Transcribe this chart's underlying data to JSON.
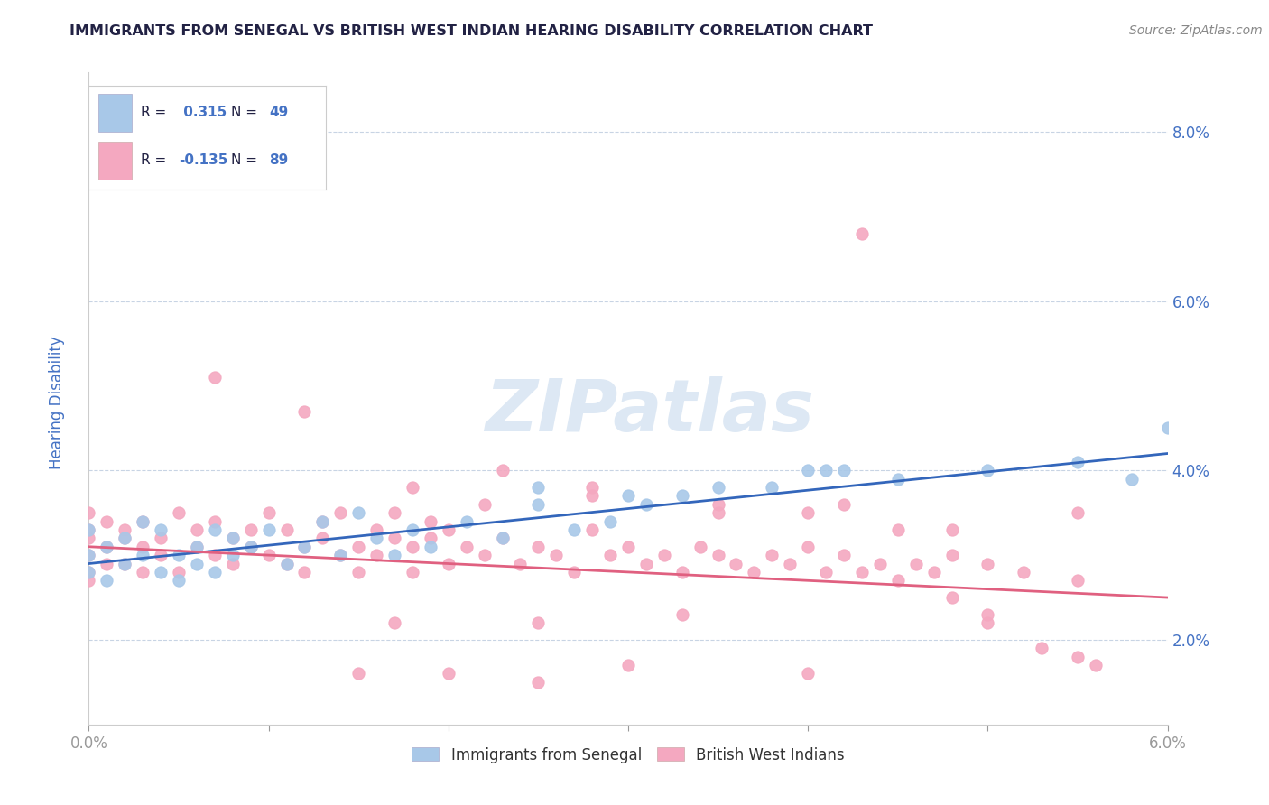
{
  "title": "IMMIGRANTS FROM SENEGAL VS BRITISH WEST INDIAN HEARING DISABILITY CORRELATION CHART",
  "source": "Source: ZipAtlas.com",
  "ylabel": "Hearing Disability",
  "xlim": [
    0.0,
    0.06
  ],
  "ylim": [
    0.01,
    0.087
  ],
  "xtick_positions": [
    0.0,
    0.01,
    0.02,
    0.03,
    0.04,
    0.05,
    0.06
  ],
  "xticklabels": [
    "0.0%",
    "",
    "",
    "",
    "",
    "",
    "6.0%"
  ],
  "ytick_positions": [
    0.02,
    0.04,
    0.06,
    0.08
  ],
  "yticklabels": [
    "2.0%",
    "4.0%",
    "6.0%",
    "8.0%"
  ],
  "R_blue": 0.315,
  "N_blue": 49,
  "R_pink": -0.135,
  "N_pink": 89,
  "blue_color": "#a8c8e8",
  "pink_color": "#f4a8c0",
  "blue_line_color": "#3366bb",
  "pink_line_color": "#e06080",
  "title_color": "#222244",
  "axis_label_color": "#4472c4",
  "ytick_color": "#4472c4",
  "xtick_color": "#999999",
  "legend_text_color": "#222244",
  "legend_val_color": "#4472c4",
  "watermark_color": "#dde8f4",
  "background_color": "#ffffff",
  "grid_color": "#c8d4e4",
  "blue_line_x": [
    0.0,
    0.06
  ],
  "blue_line_y": [
    0.029,
    0.042
  ],
  "pink_line_x": [
    0.0,
    0.06
  ],
  "pink_line_y": [
    0.031,
    0.025
  ],
  "figsize": [
    14.06,
    8.92
  ],
  "dpi": 100,
  "blue_scatter_x": [
    0.0,
    0.0,
    0.0,
    0.001,
    0.001,
    0.002,
    0.002,
    0.003,
    0.003,
    0.004,
    0.004,
    0.005,
    0.005,
    0.006,
    0.006,
    0.007,
    0.007,
    0.008,
    0.008,
    0.009,
    0.01,
    0.011,
    0.012,
    0.013,
    0.014,
    0.015,
    0.016,
    0.017,
    0.018,
    0.019,
    0.021,
    0.023,
    0.025,
    0.027,
    0.029,
    0.031,
    0.033,
    0.035,
    0.038,
    0.041,
    0.025,
    0.03,
    0.04,
    0.045,
    0.05,
    0.055,
    0.058,
    0.06,
    0.042
  ],
  "blue_scatter_y": [
    0.03,
    0.033,
    0.028,
    0.031,
    0.027,
    0.032,
    0.029,
    0.03,
    0.034,
    0.028,
    0.033,
    0.03,
    0.027,
    0.031,
    0.029,
    0.033,
    0.028,
    0.03,
    0.032,
    0.031,
    0.033,
    0.029,
    0.031,
    0.034,
    0.03,
    0.035,
    0.032,
    0.03,
    0.033,
    0.031,
    0.034,
    0.032,
    0.036,
    0.033,
    0.034,
    0.036,
    0.037,
    0.038,
    0.038,
    0.04,
    0.038,
    0.037,
    0.04,
    0.039,
    0.04,
    0.041,
    0.039,
    0.045,
    0.04
  ],
  "pink_scatter_x": [
    0.0,
    0.0,
    0.0,
    0.0,
    0.0,
    0.0,
    0.001,
    0.001,
    0.001,
    0.002,
    0.002,
    0.002,
    0.003,
    0.003,
    0.003,
    0.004,
    0.004,
    0.005,
    0.005,
    0.006,
    0.006,
    0.007,
    0.007,
    0.008,
    0.008,
    0.009,
    0.009,
    0.01,
    0.01,
    0.011,
    0.011,
    0.012,
    0.012,
    0.013,
    0.013,
    0.014,
    0.014,
    0.015,
    0.015,
    0.016,
    0.016,
    0.017,
    0.017,
    0.018,
    0.018,
    0.019,
    0.019,
    0.02,
    0.02,
    0.021,
    0.022,
    0.023,
    0.024,
    0.025,
    0.026,
    0.027,
    0.028,
    0.029,
    0.03,
    0.031,
    0.032,
    0.033,
    0.034,
    0.035,
    0.036,
    0.037,
    0.038,
    0.039,
    0.04,
    0.041,
    0.042,
    0.043,
    0.044,
    0.045,
    0.046,
    0.047,
    0.048,
    0.05,
    0.052,
    0.055,
    0.023,
    0.028,
    0.035,
    0.04,
    0.045,
    0.048,
    0.05,
    0.053,
    0.056
  ],
  "pink_scatter_y": [
    0.03,
    0.033,
    0.028,
    0.035,
    0.032,
    0.027,
    0.031,
    0.029,
    0.034,
    0.032,
    0.029,
    0.033,
    0.031,
    0.028,
    0.034,
    0.03,
    0.032,
    0.035,
    0.028,
    0.033,
    0.031,
    0.03,
    0.034,
    0.032,
    0.029,
    0.033,
    0.031,
    0.03,
    0.035,
    0.029,
    0.033,
    0.031,
    0.028,
    0.034,
    0.032,
    0.03,
    0.035,
    0.031,
    0.028,
    0.033,
    0.03,
    0.032,
    0.035,
    0.031,
    0.028,
    0.034,
    0.032,
    0.029,
    0.033,
    0.031,
    0.03,
    0.032,
    0.029,
    0.031,
    0.03,
    0.028,
    0.033,
    0.03,
    0.031,
    0.029,
    0.03,
    0.028,
    0.031,
    0.03,
    0.029,
    0.028,
    0.03,
    0.029,
    0.031,
    0.028,
    0.03,
    0.028,
    0.029,
    0.027,
    0.029,
    0.028,
    0.03,
    0.029,
    0.028,
    0.027,
    0.04,
    0.038,
    0.036,
    0.035,
    0.033,
    0.025,
    0.022,
    0.019,
    0.017
  ],
  "extra_pink_x": [
    0.007,
    0.012,
    0.018,
    0.022,
    0.028,
    0.035,
    0.042,
    0.048,
    0.055,
    0.043,
    0.017,
    0.025,
    0.033,
    0.05,
    0.015,
    0.02,
    0.025,
    0.03,
    0.04,
    0.055
  ],
  "extra_pink_y": [
    0.051,
    0.047,
    0.038,
    0.036,
    0.037,
    0.035,
    0.036,
    0.033,
    0.035,
    0.068,
    0.022,
    0.022,
    0.023,
    0.023,
    0.016,
    0.016,
    0.015,
    0.017,
    0.016,
    0.018
  ]
}
